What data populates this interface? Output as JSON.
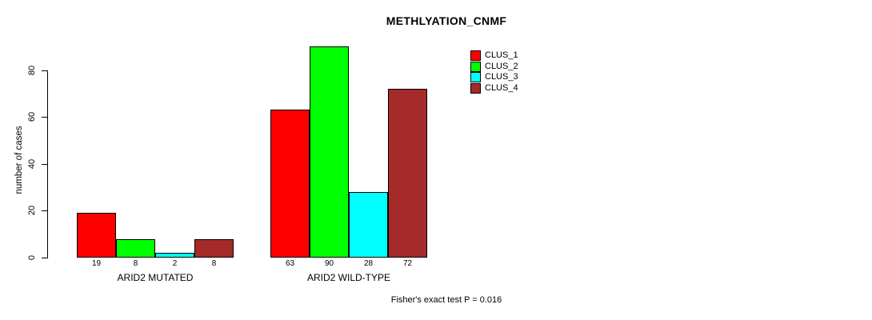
{
  "chart_data": {
    "type": "bar",
    "title": "METHLYATION_CNMF",
    "categories": [
      "ARID2 MUTATED",
      "ARID2 WILD-TYPE"
    ],
    "series": [
      {
        "name": "CLUS_1",
        "color": "#FF0000",
        "values": [
          19,
          63
        ]
      },
      {
        "name": "CLUS_2",
        "color": "#00FF00",
        "values": [
          8,
          90
        ]
      },
      {
        "name": "CLUS_3",
        "color": "#00FFFF",
        "values": [
          2,
          28
        ]
      },
      {
        "name": "CLUS_4",
        "color": "#A52A2A",
        "values": [
          8,
          72
        ]
      }
    ],
    "xlabel": "",
    "ylabel": "number of cases",
    "ylim": [
      0,
      90
    ],
    "y_ticks": [
      0,
      20,
      40,
      60,
      80
    ],
    "bar_value_labels": true,
    "grid": false,
    "legend_position": "top-right",
    "annotation": "Fisher's exact test P = 0.016"
  }
}
